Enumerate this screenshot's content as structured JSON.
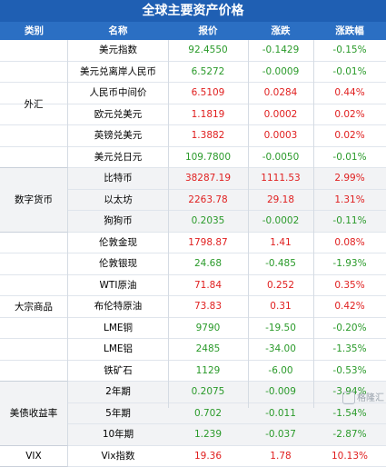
{
  "title": "全球主要资产价格",
  "headers": {
    "category": "类别",
    "name": "名称",
    "price": "报价",
    "change": "涨跌",
    "pct": "涨跌幅"
  },
  "colors": {
    "up": "#e01f1f",
    "down": "#2a9a2a",
    "header_bg": "#2b6fc3",
    "title_bg": "#1f5fb3"
  },
  "groups": [
    {
      "label": "外汇",
      "rows": [
        {
          "name": "美元指数",
          "price": "92.4550",
          "change": "-0.1429",
          "pct": "-0.15%",
          "dir": "down"
        },
        {
          "name": "美元兑离岸人民币",
          "price": "6.5272",
          "change": "-0.0009",
          "pct": "-0.01%",
          "dir": "down"
        },
        {
          "name": "人民币中间价",
          "price": "6.5109",
          "change": "0.0284",
          "pct": "0.44%",
          "dir": "up"
        },
        {
          "name": "欧元兑美元",
          "price": "1.1819",
          "change": "0.0002",
          "pct": "0.02%",
          "dir": "up"
        },
        {
          "name": "英镑兑美元",
          "price": "1.3882",
          "change": "0.0003",
          "pct": "0.02%",
          "dir": "up"
        },
        {
          "name": "美元兑日元",
          "price": "109.7800",
          "change": "-0.0050",
          "pct": "-0.01%",
          "dir": "down"
        }
      ]
    },
    {
      "label": "数字货币",
      "rows": [
        {
          "name": "比特币",
          "price": "38287.19",
          "change": "1111.53",
          "pct": "2.99%",
          "dir": "up"
        },
        {
          "name": "以太坊",
          "price": "2263.78",
          "change": "29.18",
          "pct": "1.31%",
          "dir": "up"
        },
        {
          "name": "狗狗币",
          "price": "0.2035",
          "change": "-0.0002",
          "pct": "-0.11%",
          "dir": "down"
        }
      ]
    },
    {
      "label": "大宗商品",
      "rows": [
        {
          "name": "伦敦金现",
          "price": "1798.87",
          "change": "1.41",
          "pct": "0.08%",
          "dir": "up"
        },
        {
          "name": "伦敦银现",
          "price": "24.68",
          "change": "-0.485",
          "pct": "-1.93%",
          "dir": "down"
        },
        {
          "name": "WTI原油",
          "price": "71.84",
          "change": "0.252",
          "pct": "0.35%",
          "dir": "up"
        },
        {
          "name": "布伦特原油",
          "price": "73.83",
          "change": "0.31",
          "pct": "0.42%",
          "dir": "up"
        },
        {
          "name": "LME铜",
          "price": "9790",
          "change": "-19.50",
          "pct": "-0.20%",
          "dir": "down"
        },
        {
          "name": "LME铝",
          "price": "2485",
          "change": "-34.00",
          "pct": "-1.35%",
          "dir": "down"
        },
        {
          "name": "铁矿石",
          "price": "1129",
          "change": "-6.00",
          "pct": "-0.53%",
          "dir": "down"
        }
      ]
    },
    {
      "label": "美债收益率",
      "rows": [
        {
          "name": "2年期",
          "price": "0.2075",
          "change": "-0.009",
          "pct": "-3.94%",
          "dir": "down"
        },
        {
          "name": "5年期",
          "price": "0.702",
          "change": "-0.011",
          "pct": "-1.54%",
          "dir": "down"
        },
        {
          "name": "10年期",
          "price": "1.239",
          "change": "-0.037",
          "pct": "-2.87%",
          "dir": "down"
        }
      ]
    },
    {
      "label": "VIX",
      "rows": [
        {
          "name": "Vix指数",
          "price": "19.36",
          "change": "1.78",
          "pct": "10.13%",
          "dir": "up"
        }
      ]
    }
  ],
  "watermark": "格隆汇"
}
